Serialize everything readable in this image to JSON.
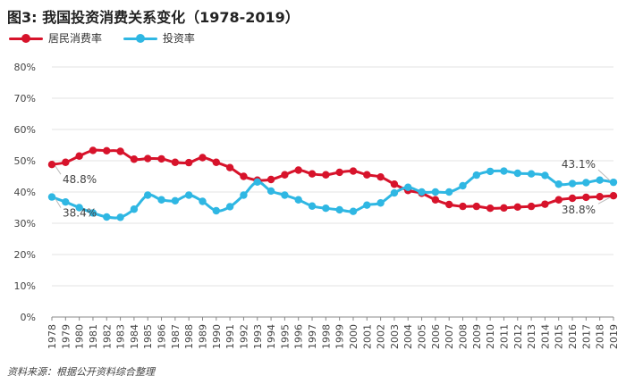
{
  "header": {
    "title": "图3: 我国投资消费关系变化（1978-2019）"
  },
  "footer": {
    "source": "资料来源：根据公开资料综合整理"
  },
  "colors": {
    "consumption": "#d7132b",
    "investment": "#2fb7e3",
    "grid": "#e3e3e3",
    "axis": "#888888"
  },
  "chart_data": {
    "type": "line",
    "title": "图3: 我国投资消费关系变化（1978-2019）",
    "xlabel": "",
    "ylabel": "",
    "ylim": [
      0,
      80
    ],
    "yticks": [
      "0%",
      "10%",
      "20%",
      "30%",
      "40%",
      "50%",
      "60%",
      "70%",
      "80%"
    ],
    "grid": true,
    "legend_position": "top-left",
    "x": [
      "1978",
      "1979",
      "1980",
      "1981",
      "1982",
      "1983",
      "1984",
      "1985",
      "1986",
      "1987",
      "1988",
      "1989",
      "1990",
      "1991",
      "1992",
      "1993",
      "1994",
      "1995",
      "1996",
      "1997",
      "1998",
      "1999",
      "2000",
      "2001",
      "2002",
      "2003",
      "2004",
      "2005",
      "2006",
      "2007",
      "2008",
      "2009",
      "2010",
      "2011",
      "2012",
      "2013",
      "2014",
      "2015",
      "2016",
      "2017",
      "2018",
      "2019"
    ],
    "series": [
      {
        "name": "居民消费率",
        "color": "#d7132b",
        "values": [
          48.8,
          49.5,
          51.5,
          53.3,
          53.2,
          53.0,
          50.5,
          50.7,
          50.6,
          49.5,
          49.4,
          51.0,
          49.5,
          47.8,
          45.0,
          43.8,
          44.0,
          45.5,
          47.0,
          45.8,
          45.5,
          46.3,
          46.7,
          45.5,
          44.8,
          42.5,
          40.5,
          39.6,
          37.5,
          36.0,
          35.4,
          35.4,
          34.8,
          34.9,
          35.2,
          35.4,
          36.1,
          37.5,
          38.0,
          38.3,
          38.5,
          38.8
        ],
        "labels": [
          {
            "index": 0,
            "text": "48.8%"
          },
          {
            "index": 41,
            "text": "38.8%"
          }
        ]
      },
      {
        "name": "投资率",
        "color": "#2fb7e3",
        "values": [
          38.4,
          36.8,
          35.0,
          33.3,
          32.0,
          31.9,
          34.5,
          39.0,
          37.5,
          37.2,
          39.0,
          37.0,
          34.0,
          35.3,
          39.0,
          43.2,
          40.3,
          39.0,
          37.5,
          35.5,
          34.8,
          34.3,
          33.8,
          35.8,
          36.5,
          39.7,
          41.5,
          40.0,
          40.0,
          40.0,
          42.0,
          45.4,
          46.6,
          46.7,
          46.0,
          45.8,
          45.3,
          42.5,
          42.7,
          43.0,
          43.8,
          43.1
        ],
        "labels": [
          {
            "index": 0,
            "text": "38.4%"
          },
          {
            "index": 41,
            "text": "43.1%"
          }
        ]
      }
    ]
  }
}
